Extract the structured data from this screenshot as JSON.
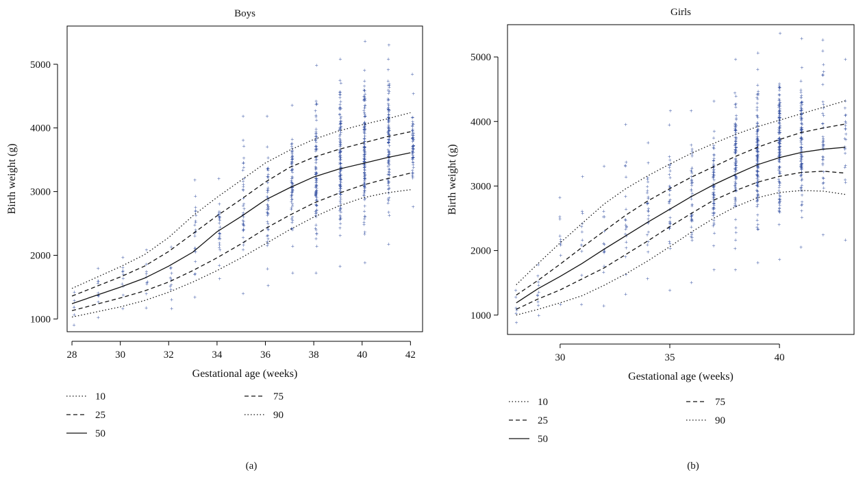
{
  "chart_data": [
    {
      "type": "scatter",
      "title": "Boys",
      "xlabel": "Gestational age (weeks)",
      "ylabel": "Birth weight (g)",
      "xlim": [
        27.8,
        42.5
      ],
      "ylim": [
        800,
        5600
      ],
      "xticks": [
        28,
        30,
        32,
        34,
        36,
        38,
        40,
        42
      ],
      "yticks": [
        1000,
        2000,
        3000,
        4000,
        5000
      ],
      "sublabel": "(a)",
      "point_marker": "+",
      "point_color": "#3a55a4",
      "point_columns": [
        {
          "x": 28.1,
          "min": 900,
          "max": 1420,
          "n": 6
        },
        {
          "x": 29.1,
          "min": 1020,
          "max": 1790,
          "n": 10
        },
        {
          "x": 30.1,
          "min": 1160,
          "max": 1960,
          "n": 10
        },
        {
          "x": 31.1,
          "min": 1170,
          "max": 2080,
          "n": 10
        },
        {
          "x": 32.1,
          "min": 1160,
          "max": 2130,
          "n": 12
        },
        {
          "x": 33.1,
          "min": 1340,
          "max": 3180,
          "n": 22
        },
        {
          "x": 34.1,
          "min": 1630,
          "max": 3200,
          "n": 28
        },
        {
          "x": 35.1,
          "min": 1400,
          "max": 4180,
          "n": 36
        },
        {
          "x": 36.1,
          "min": 1520,
          "max": 4180,
          "n": 48
        },
        {
          "x": 37.1,
          "min": 1720,
          "max": 4350,
          "n": 70
        },
        {
          "x": 38.1,
          "min": 1720,
          "max": 4980,
          "n": 100
        },
        {
          "x": 39.1,
          "min": 1820,
          "max": 5080,
          "n": 130
        },
        {
          "x": 40.1,
          "min": 1880,
          "max": 5360,
          "n": 140
        },
        {
          "x": 41.1,
          "min": 2170,
          "max": 5300,
          "n": 110
        },
        {
          "x": 42.1,
          "min": 2760,
          "max": 4840,
          "n": 60
        }
      ],
      "series": [
        {
          "name": "10",
          "style": "dotted",
          "x": [
            28,
            29,
            30,
            31,
            32,
            33,
            34,
            35,
            36,
            37,
            38,
            39,
            40,
            41,
            42
          ],
          "values": [
            1030,
            1110,
            1190,
            1290,
            1420,
            1580,
            1760,
            1960,
            2180,
            2400,
            2600,
            2770,
            2900,
            2980,
            3030
          ]
        },
        {
          "name": "25",
          "style": "dashed",
          "x": [
            28,
            29,
            30,
            31,
            32,
            33,
            34,
            35,
            36,
            37,
            38,
            39,
            40,
            41,
            42
          ],
          "values": [
            1130,
            1230,
            1330,
            1440,
            1580,
            1760,
            1960,
            2180,
            2420,
            2630,
            2820,
            2970,
            3100,
            3200,
            3290
          ]
        },
        {
          "name": "50",
          "style": "solid",
          "x": [
            28,
            29,
            30,
            31,
            32,
            33,
            34,
            35,
            36,
            37,
            38,
            39,
            40,
            41,
            42
          ],
          "values": [
            1240,
            1370,
            1500,
            1640,
            1830,
            2050,
            2370,
            2610,
            2870,
            3060,
            3230,
            3350,
            3440,
            3530,
            3610
          ]
        },
        {
          "name": "75",
          "style": "dashed",
          "x": [
            28,
            29,
            30,
            31,
            32,
            33,
            34,
            35,
            36,
            37,
            38,
            39,
            40,
            41,
            42
          ],
          "values": [
            1360,
            1510,
            1660,
            1830,
            2060,
            2340,
            2620,
            2880,
            3150,
            3380,
            3540,
            3660,
            3760,
            3860,
            3940
          ]
        },
        {
          "name": "90",
          "style": "dotted",
          "x": [
            28,
            29,
            30,
            31,
            32,
            33,
            34,
            35,
            36,
            37,
            38,
            39,
            40,
            41,
            42
          ],
          "values": [
            1480,
            1650,
            1820,
            2010,
            2280,
            2620,
            2910,
            3180,
            3450,
            3650,
            3820,
            3950,
            4050,
            4140,
            4240
          ]
        }
      ],
      "legend": [
        "10",
        "25",
        "50",
        "75",
        "90"
      ],
      "legend_position": "below"
    },
    {
      "type": "scatter",
      "title": "Girls",
      "xlabel": "Gestational age (weeks)",
      "ylabel": "Birth weight (g)",
      "xlim": [
        27.6,
        43.4
      ],
      "ylim": [
        700,
        5500
      ],
      "xticks": [
        30,
        35,
        40
      ],
      "yticks": [
        1000,
        2000,
        3000,
        4000,
        5000
      ],
      "sublabel": "(b)",
      "point_marker": "+",
      "point_color": "#3a55a4",
      "point_columns": [
        {
          "x": 28.0,
          "min": 880,
          "max": 1380,
          "n": 6
        },
        {
          "x": 29.0,
          "min": 990,
          "max": 1780,
          "n": 10
        },
        {
          "x": 30.0,
          "min": 1160,
          "max": 2820,
          "n": 10
        },
        {
          "x": 31.0,
          "min": 1160,
          "max": 3140,
          "n": 12
        },
        {
          "x": 32.0,
          "min": 1140,
          "max": 3300,
          "n": 14
        },
        {
          "x": 33.0,
          "min": 1320,
          "max": 3950,
          "n": 20
        },
        {
          "x": 34.0,
          "min": 1560,
          "max": 3670,
          "n": 26
        },
        {
          "x": 35.0,
          "min": 1380,
          "max": 4160,
          "n": 34
        },
        {
          "x": 36.0,
          "min": 1500,
          "max": 4160,
          "n": 46
        },
        {
          "x": 37.0,
          "min": 1700,
          "max": 4310,
          "n": 70
        },
        {
          "x": 38.0,
          "min": 1700,
          "max": 4960,
          "n": 100
        },
        {
          "x": 39.0,
          "min": 1810,
          "max": 5060,
          "n": 130
        },
        {
          "x": 40.0,
          "min": 1860,
          "max": 5360,
          "n": 140
        },
        {
          "x": 41.0,
          "min": 2050,
          "max": 5280,
          "n": 110
        },
        {
          "x": 42.0,
          "min": 2240,
          "max": 5260,
          "n": 40
        },
        {
          "x": 43.0,
          "min": 2160,
          "max": 4960,
          "n": 22
        }
      ],
      "series": [
        {
          "name": "10",
          "style": "dotted",
          "x": [
            28,
            29,
            30,
            31,
            32,
            33,
            34,
            35,
            36,
            37,
            38,
            39,
            40,
            41,
            42,
            43
          ],
          "values": [
            1000,
            1090,
            1190,
            1300,
            1460,
            1640,
            1840,
            2060,
            2290,
            2500,
            2680,
            2820,
            2900,
            2930,
            2920,
            2870
          ]
        },
        {
          "name": "25",
          "style": "dashed",
          "x": [
            28,
            29,
            30,
            31,
            32,
            33,
            34,
            35,
            36,
            37,
            38,
            39,
            40,
            41,
            42,
            43
          ],
          "values": [
            1090,
            1250,
            1390,
            1560,
            1730,
            1940,
            2150,
            2370,
            2580,
            2780,
            2930,
            3060,
            3150,
            3210,
            3230,
            3200
          ]
        },
        {
          "name": "50",
          "style": "solid",
          "x": [
            28,
            29,
            30,
            31,
            32,
            33,
            34,
            35,
            36,
            37,
            38,
            39,
            40,
            41,
            42,
            43
          ],
          "values": [
            1190,
            1410,
            1600,
            1800,
            2020,
            2230,
            2440,
            2640,
            2840,
            3020,
            3180,
            3330,
            3440,
            3520,
            3570,
            3600
          ]
        },
        {
          "name": "75",
          "style": "dashed",
          "x": [
            28,
            29,
            30,
            31,
            32,
            33,
            34,
            35,
            36,
            37,
            38,
            39,
            40,
            41,
            42,
            43
          ],
          "values": [
            1310,
            1540,
            1790,
            2050,
            2300,
            2550,
            2770,
            2960,
            3140,
            3300,
            3460,
            3600,
            3720,
            3830,
            3900,
            3960
          ]
        },
        {
          "name": "90",
          "style": "dotted",
          "x": [
            28,
            29,
            30,
            31,
            32,
            33,
            34,
            35,
            36,
            37,
            38,
            39,
            40,
            41,
            42,
            43
          ],
          "values": [
            1470,
            1800,
            2120,
            2420,
            2720,
            2960,
            3160,
            3340,
            3510,
            3660,
            3800,
            3920,
            4020,
            4120,
            4220,
            4320
          ]
        }
      ],
      "legend": [
        "10",
        "25",
        "50",
        "75",
        "90"
      ],
      "legend_position": "below"
    }
  ]
}
